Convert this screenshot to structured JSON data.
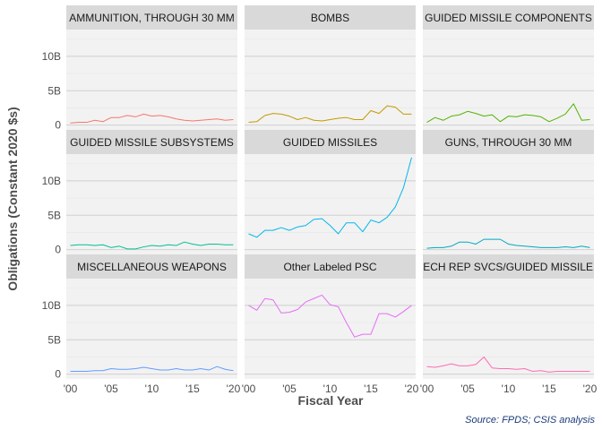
{
  "chart_data": {
    "type": "line",
    "xlabel": "Fiscal Year",
    "ylabel": "Obligations (Constant 2020 $s)",
    "caption": "Source: FPDS; CSIS analysis",
    "x": [
      2000,
      2001,
      2002,
      2003,
      2004,
      2005,
      2006,
      2007,
      2008,
      2009,
      2010,
      2011,
      2012,
      2013,
      2014,
      2015,
      2016,
      2017,
      2018,
      2019,
      2020
    ],
    "xlim": [
      1999.5,
      2020.5
    ],
    "ylim": [
      -0.7,
      13.9
    ],
    "x_ticks": [
      2000,
      2005,
      2010,
      2015,
      2020
    ],
    "x_tick_labels": [
      "'00",
      "'05",
      "'10",
      "'15",
      "'20"
    ],
    "y_ticks": [
      0,
      5,
      10
    ],
    "y_tick_labels": [
      "0",
      "5B",
      "10B"
    ],
    "panels": [
      {
        "name": "AMMUNITION, THROUGH 30 MM",
        "color": "#F8766D",
        "values": [
          0.3,
          0.4,
          0.4,
          0.7,
          0.5,
          1.1,
          1.1,
          1.4,
          1.2,
          1.6,
          1.3,
          1.4,
          1.2,
          0.9,
          0.7,
          0.6,
          0.7,
          0.8,
          0.9,
          0.7,
          0.8
        ]
      },
      {
        "name": "BOMBS",
        "color": "#C49A00",
        "values": [
          0.4,
          0.5,
          1.4,
          1.7,
          1.6,
          1.3,
          0.8,
          1.1,
          0.7,
          0.6,
          0.8,
          1.0,
          1.1,
          0.8,
          0.8,
          2.1,
          1.7,
          2.8,
          2.6,
          1.6,
          1.6
        ]
      },
      {
        "name": "GUIDED MISSILE COMPONENTS",
        "color": "#53B400",
        "values": [
          0.4,
          1.1,
          0.7,
          1.3,
          1.5,
          2.0,
          1.7,
          1.3,
          1.5,
          0.5,
          1.3,
          1.2,
          1.5,
          1.4,
          1.2,
          0.5,
          1.0,
          1.6,
          3.1,
          0.7,
          0.8
        ]
      },
      {
        "name": "GUIDED MISSILE SUBSYSTEMS",
        "color": "#00C094",
        "values": [
          0.6,
          0.7,
          0.7,
          0.6,
          0.7,
          0.3,
          0.5,
          0.1,
          0.1,
          0.4,
          0.6,
          0.5,
          0.7,
          0.6,
          1.1,
          0.8,
          0.6,
          0.8,
          0.8,
          0.7,
          0.7
        ]
      },
      {
        "name": "GUIDED MISSILES",
        "color": "#00B6EB",
        "values": [
          2.3,
          1.8,
          2.8,
          2.8,
          3.2,
          2.8,
          3.3,
          3.5,
          4.4,
          4.5,
          3.5,
          2.3,
          3.9,
          3.9,
          2.6,
          4.3,
          3.9,
          4.7,
          6.2,
          9.0,
          13.4
        ]
      },
      {
        "name": "GUNS, THROUGH 30 MM",
        "color": "#00A9C0",
        "values": [
          0.2,
          0.3,
          0.3,
          0.5,
          1.1,
          1.1,
          0.8,
          1.5,
          1.5,
          1.5,
          0.8,
          0.6,
          0.5,
          0.4,
          0.3,
          0.3,
          0.3,
          0.4,
          0.3,
          0.5,
          0.3
        ]
      },
      {
        "name": "MISCELLANEOUS WEAPONS",
        "color": "#629DFF",
        "values": [
          0.4,
          0.4,
          0.4,
          0.5,
          0.5,
          0.8,
          0.7,
          0.7,
          0.8,
          1.0,
          0.8,
          0.6,
          0.6,
          0.8,
          0.6,
          0.6,
          0.8,
          0.6,
          1.1,
          0.7,
          0.5
        ]
      },
      {
        "name": "Other Labeled PSC",
        "color": "#E56EF5",
        "values": [
          10.0,
          9.3,
          11.0,
          10.8,
          8.9,
          9.0,
          9.4,
          10.5,
          11.0,
          11.5,
          10.1,
          9.8,
          7.5,
          5.4,
          5.8,
          5.8,
          8.8,
          8.8,
          8.3,
          9.1,
          10.0
        ]
      },
      {
        "name": "TECH REP SVCS/GUIDED MISSILES",
        "color": "#FF6BB5",
        "values": [
          1.1,
          1.0,
          1.2,
          1.5,
          1.2,
          1.2,
          1.4,
          2.5,
          0.9,
          0.8,
          0.8,
          0.7,
          0.8,
          0.4,
          0.5,
          0.3,
          0.4,
          0.4,
          0.4,
          0.4,
          0.4
        ]
      }
    ]
  }
}
